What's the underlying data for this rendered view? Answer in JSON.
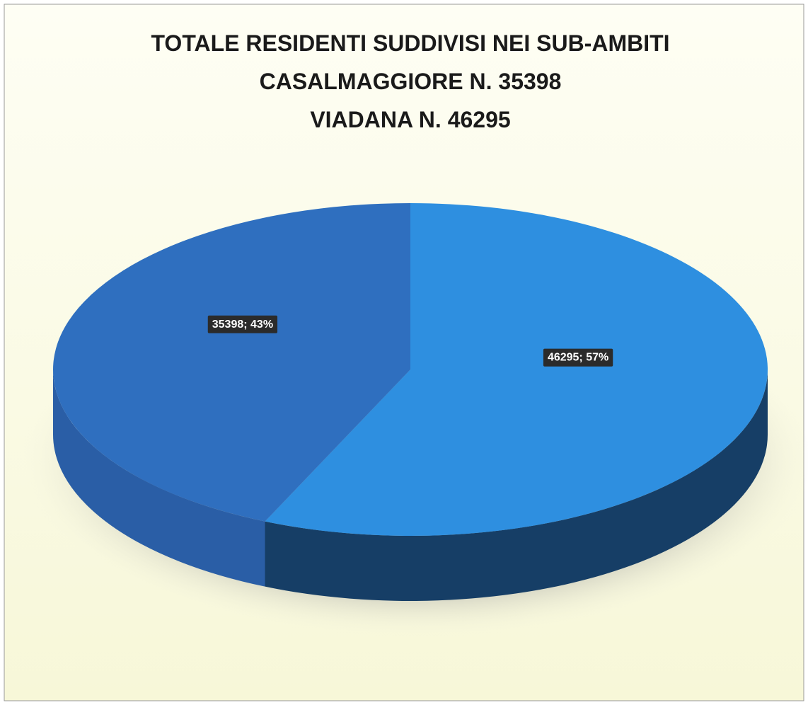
{
  "chart_data": {
    "type": "pie",
    "title": [
      "TOTALE RESIDENTI SUDDIVISI NEI SUB-AMBITI",
      "CASALMAGGIORE N. 35398",
      "VIADANA N. 46295"
    ],
    "values": [
      46295,
      35398
    ],
    "value_labels": [
      "46295; 57%",
      "35398; 43%"
    ],
    "colors": [
      "#2e8fe0",
      "#2f6fbf"
    ],
    "side_colors": [
      "#163e66",
      "#2a5ea6"
    ]
  }
}
